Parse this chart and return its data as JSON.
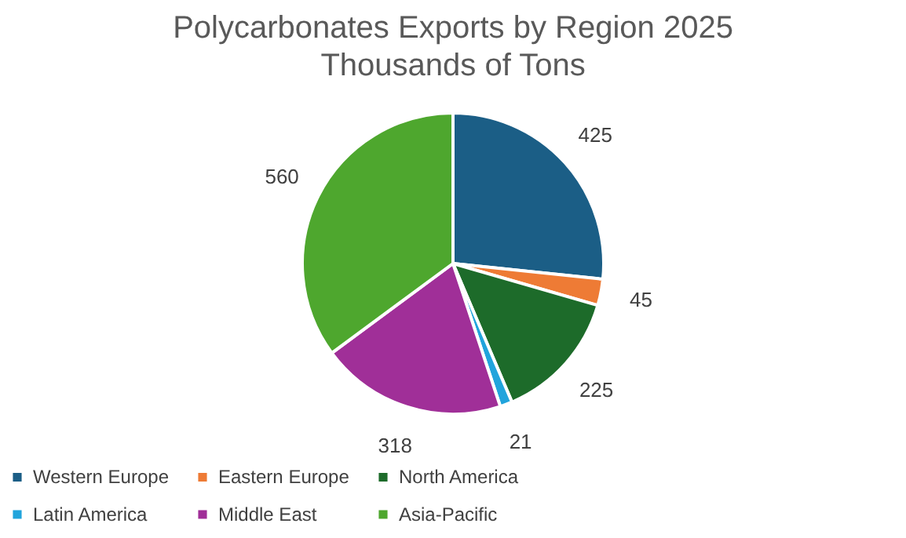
{
  "chart_data": {
    "type": "pie",
    "title": "Polycarbonates Exports by Region 2025",
    "subtitle": "Thousands of Tons",
    "categories": [
      "Western Europe",
      "Eastern Europe",
      "North America",
      "Latin America",
      "Middle East",
      "Asia-Pacific"
    ],
    "values": [
      425,
      45,
      225,
      21,
      318,
      560
    ],
    "colors": [
      "#1b5e86",
      "#ee7b35",
      "#1d6b2a",
      "#21a4dc",
      "#a02f98",
      "#4ea72e"
    ],
    "data_labels": true,
    "legend": "bottom"
  }
}
